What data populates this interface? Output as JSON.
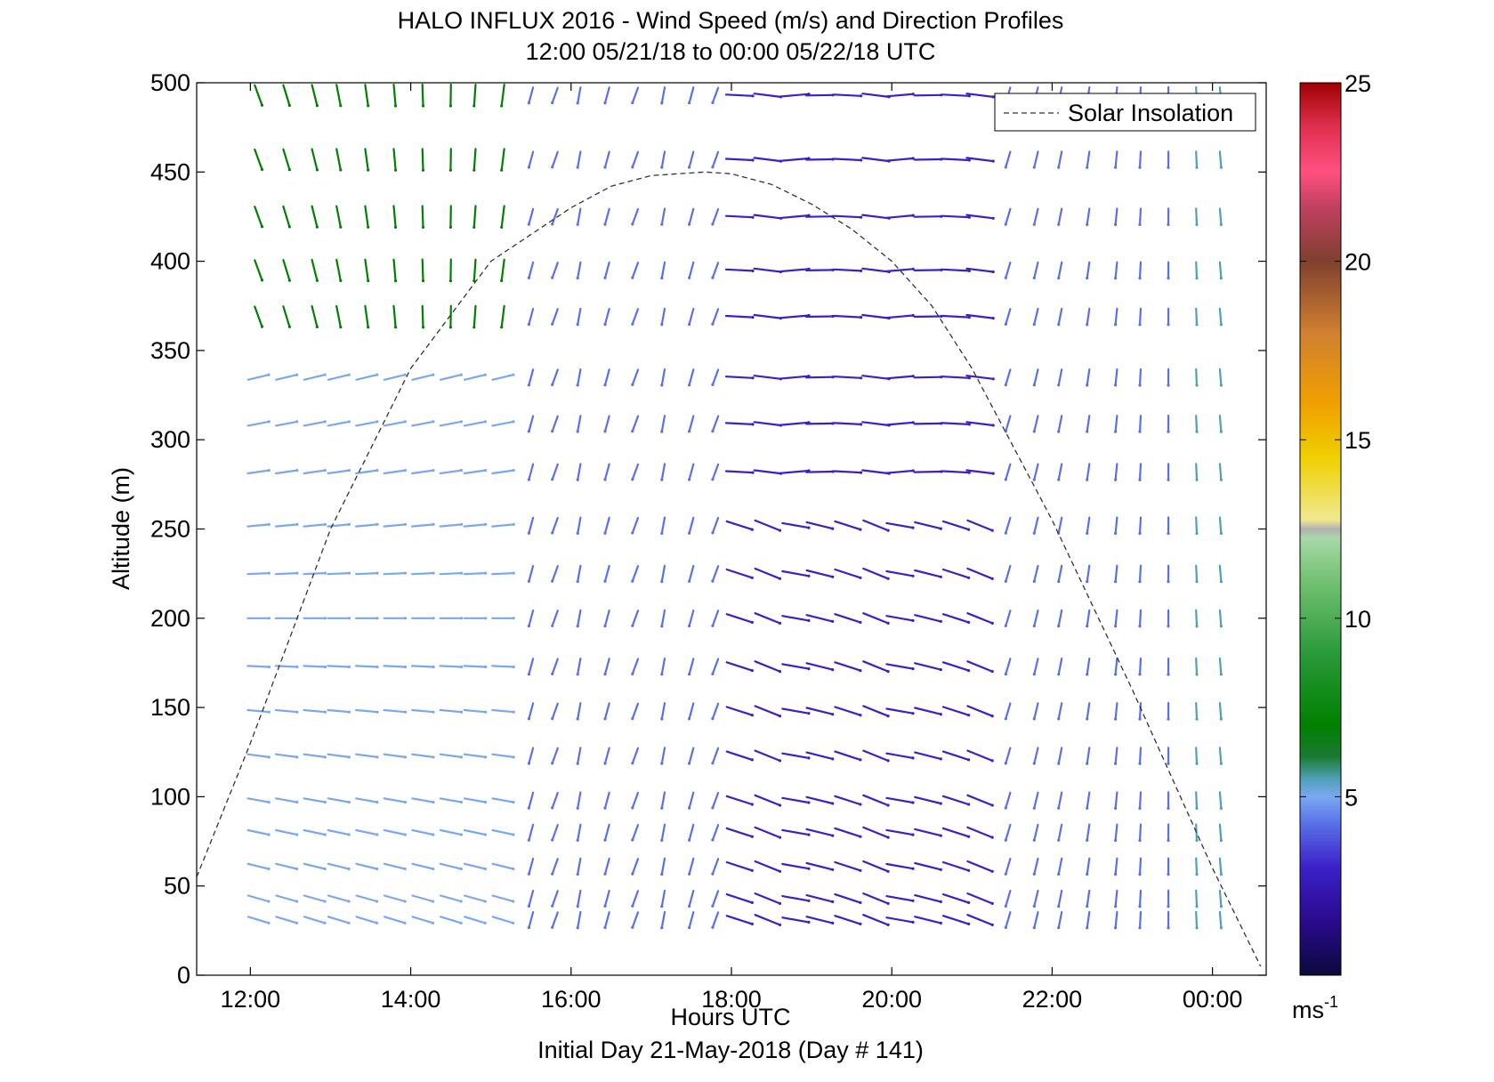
{
  "chart_data": {
    "type": "vector-profile",
    "title": "HALO INFLUX 2016 - Wind Speed (m/s) and Direction Profiles",
    "subtitle": "12:00 05/21/18 to 00:00 05/22/18  UTC",
    "xlabel": "Hours UTC",
    "xlabel2": "Initial Day 21-May-2018 (Day # 141)",
    "ylabel": "Altitude (m)",
    "xlim": [
      11.33,
      24.67
    ],
    "ylim": [
      0,
      500
    ],
    "x_ticks": [
      12,
      14,
      16,
      18,
      20,
      22,
      24
    ],
    "x_tick_labels": [
      "12:00",
      "14:00",
      "16:00",
      "18:00",
      "20:00",
      "22:00",
      "00:00"
    ],
    "y_ticks": [
      0,
      50,
      100,
      150,
      200,
      250,
      300,
      350,
      400,
      450,
      500
    ],
    "y_tick_labels": [
      "0",
      "50",
      "100",
      "150",
      "200",
      "250",
      "300",
      "350",
      "400",
      "450",
      "500"
    ],
    "legend": {
      "position": "top-right",
      "entries": [
        "Solar Insolation"
      ]
    },
    "colorbar": {
      "range": [
        0,
        25
      ],
      "ticks": [
        5,
        10,
        15,
        20,
        25
      ],
      "tick_labels": [
        "5",
        "10",
        "15",
        "20",
        "25"
      ],
      "unit_label": "ms",
      "unit_exponent": "-1",
      "colors": [
        "#0a0a3c",
        "#2a0a8c",
        "#3a20c8",
        "#5a70e8",
        "#7aa8f0",
        "#50a0b8",
        "#1a7a30",
        "#008000",
        "#2a9a3a",
        "#70c070",
        "#a8d8a8",
        "#b0b0b0",
        "#f0e890",
        "#f0d000",
        "#f0a000",
        "#d08030",
        "#a06040",
        "#804030",
        "#c04060",
        "#ff5080",
        "#e03050",
        "#c01020",
        "#a00000"
      ]
    },
    "solar_insolation_curve": {
      "style": "dashed",
      "x": [
        11.33,
        12.0,
        13.0,
        14.0,
        15.0,
        16.0,
        16.5,
        17.0,
        17.67,
        18.0,
        18.5,
        19.0,
        19.5,
        20.0,
        20.5,
        21.0,
        22.0,
        23.0,
        24.0,
        24.6
      ],
      "y": [
        55,
        130,
        250,
        340,
        400,
        430,
        442,
        448,
        450,
        449,
        443,
        432,
        418,
        400,
        375,
        340,
        255,
        160,
        60,
        5
      ]
    },
    "barb_rows_altitude_m": [
      493,
      457,
      425,
      395,
      369,
      335,
      309,
      282,
      252,
      225,
      200,
      173,
      148,
      123,
      98,
      80,
      61,
      43,
      31
    ],
    "barb_columns_hours": [
      12.1,
      12.45,
      12.8,
      13.1,
      13.45,
      13.8,
      14.15,
      14.5,
      14.8,
      15.15,
      15.5,
      15.8,
      16.1,
      16.45,
      16.8,
      17.15,
      17.5,
      17.8,
      18.1,
      18.45,
      18.8,
      19.1,
      19.45,
      19.8,
      20.1,
      20.45,
      20.8,
      21.1,
      21.45,
      21.8,
      22.1,
      22.45,
      22.8,
      23.1,
      23.45,
      23.8,
      24.1
    ]
  }
}
